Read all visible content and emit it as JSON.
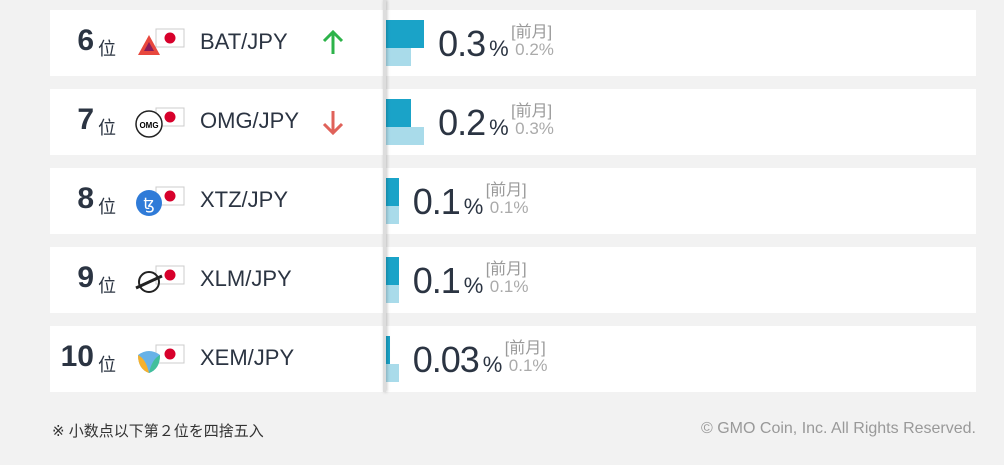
{
  "rows": [
    {
      "rank": 6,
      "rank_suffix": "位",
      "pair": "BAT/JPY",
      "trend": "up",
      "value": 0.3,
      "unit": "%",
      "prev_caption": "[前月]",
      "prev_value": 0.2,
      "prev_label": "0.2%"
    },
    {
      "rank": 7,
      "rank_suffix": "位",
      "pair": "OMG/JPY",
      "icon_text": "OMG",
      "trend": "down",
      "value": 0.2,
      "unit": "%",
      "prev_caption": "[前月]",
      "prev_value": 0.3,
      "prev_label": "0.3%"
    },
    {
      "rank": 8,
      "rank_suffix": "位",
      "pair": "XTZ/JPY",
      "value": 0.1,
      "unit": "%",
      "prev_caption": "[前月]",
      "prev_value": 0.1,
      "prev_label": "0.1%"
    },
    {
      "rank": 9,
      "rank_suffix": "位",
      "pair": "XLM/JPY",
      "value": 0.1,
      "unit": "%",
      "prev_caption": "[前月]",
      "prev_value": 0.1,
      "prev_label": "0.1%"
    },
    {
      "rank": 10,
      "rank_suffix": "位",
      "pair": "XEM/JPY",
      "value": 0.03,
      "unit": "%",
      "prev_caption": "[前月]",
      "prev_value": 0.1,
      "prev_label": "0.1%"
    }
  ],
  "footer": {
    "note": "※ 小数点以下第２位を四捨五入",
    "copyright": "© GMO Coin, Inc. All Rights Reserved."
  }
}
